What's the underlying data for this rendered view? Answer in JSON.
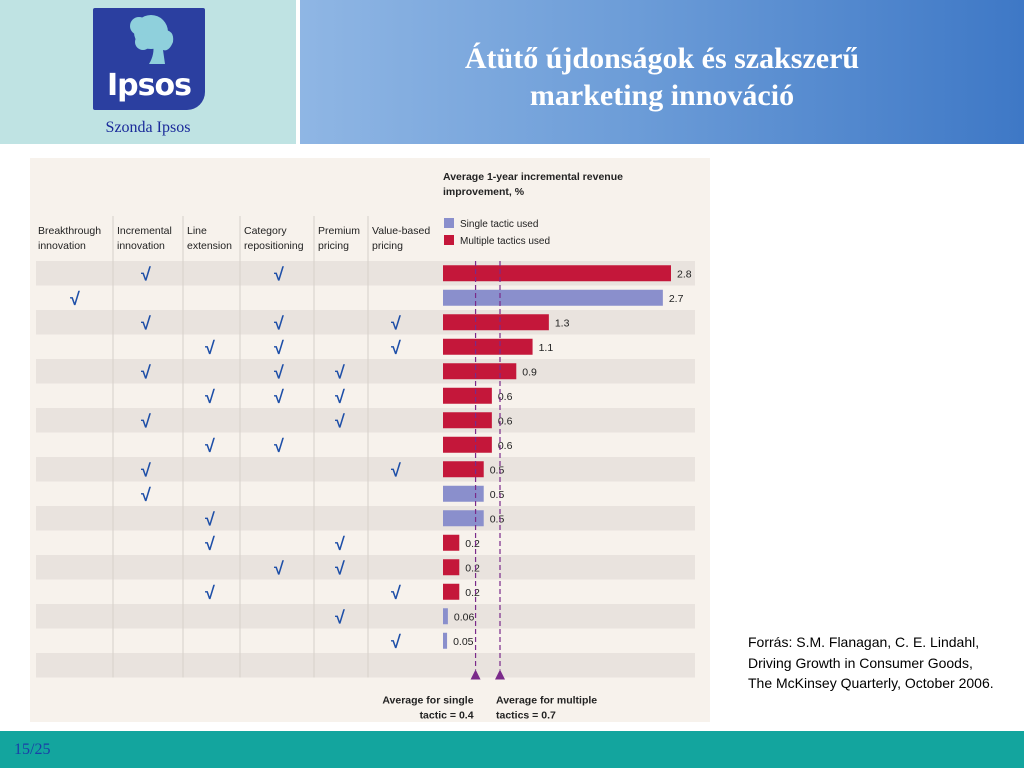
{
  "slide": {
    "title_line1": "Átütő újdonságok és szakszerű",
    "title_line2": "marketing innováció",
    "logo_text": "Ipsos",
    "logo_caption": "Szonda Ipsos",
    "source": "Forrás: S.M. Flanagan, C. E. Lindahl, Driving Growth in Consumer Goods, The McKinsey Quarterly, October 2006.",
    "page_number": "15/25",
    "colors": {
      "single": "#8a8fcc",
      "multiple": "#c4173a",
      "footer": "#13a59e",
      "logo": "#2b3fa0"
    }
  },
  "chart_data": {
    "type": "bar",
    "orientation": "horizontal",
    "title_line1": "Average 1-year incremental revenue",
    "title_line2": "improvement, %",
    "legend": [
      "Single tactic used",
      "Multiple tactics used"
    ],
    "check_mark": "√",
    "columns": [
      [
        "Breakthrough",
        "innovation"
      ],
      [
        "Incremental",
        "innovation"
      ],
      [
        "Line",
        "extension"
      ],
      [
        "Category",
        "repositioning"
      ],
      [
        "Premium",
        "pricing"
      ],
      [
        "Value-based",
        "pricing"
      ]
    ],
    "rows": [
      {
        "checks": [
          1,
          3
        ],
        "value": 2.8,
        "label": "2.8",
        "series": "multiple"
      },
      {
        "checks": [
          0
        ],
        "value": 2.7,
        "label": "2.7",
        "series": "single"
      },
      {
        "checks": [
          1,
          3,
          5
        ],
        "value": 1.3,
        "label": "1.3",
        "series": "multiple"
      },
      {
        "checks": [
          2,
          3,
          5
        ],
        "value": 1.1,
        "label": "1.1",
        "series": "multiple"
      },
      {
        "checks": [
          1,
          3,
          4
        ],
        "value": 0.9,
        "label": "0.9",
        "series": "multiple"
      },
      {
        "checks": [
          2,
          3,
          4
        ],
        "value": 0.6,
        "label": "0.6",
        "series": "multiple"
      },
      {
        "checks": [
          1,
          4
        ],
        "value": 0.6,
        "label": "0.6",
        "series": "multiple"
      },
      {
        "checks": [
          2,
          3
        ],
        "value": 0.6,
        "label": "0.6",
        "series": "multiple"
      },
      {
        "checks": [
          1,
          5
        ],
        "value": 0.5,
        "label": "0.5",
        "series": "multiple"
      },
      {
        "checks": [
          1
        ],
        "value": 0.5,
        "label": "0.5",
        "series": "single"
      },
      {
        "checks": [
          2
        ],
        "value": 0.5,
        "label": "0.5",
        "series": "single"
      },
      {
        "checks": [
          2,
          4
        ],
        "value": 0.2,
        "label": "0.2",
        "series": "multiple"
      },
      {
        "checks": [
          3,
          4
        ],
        "value": 0.2,
        "label": "0.2",
        "series": "multiple"
      },
      {
        "checks": [
          2,
          5
        ],
        "value": 0.2,
        "label": "0.2",
        "series": "multiple"
      },
      {
        "checks": [
          4
        ],
        "value": 0.06,
        "label": "0.06",
        "series": "single"
      },
      {
        "checks": [
          5
        ],
        "value": 0.05,
        "label": "0.05",
        "series": "single"
      },
      {
        "checks": [],
        "value": null,
        "label": "",
        "series": ""
      }
    ],
    "averages": [
      {
        "value": 0.4,
        "line1": "Average for single",
        "line2": "tactic = 0.4"
      },
      {
        "value": 0.7,
        "line1": "Average for multiple",
        "line2": "tactics = 0.7"
      }
    ],
    "xlim": [
      0,
      2.8
    ]
  }
}
